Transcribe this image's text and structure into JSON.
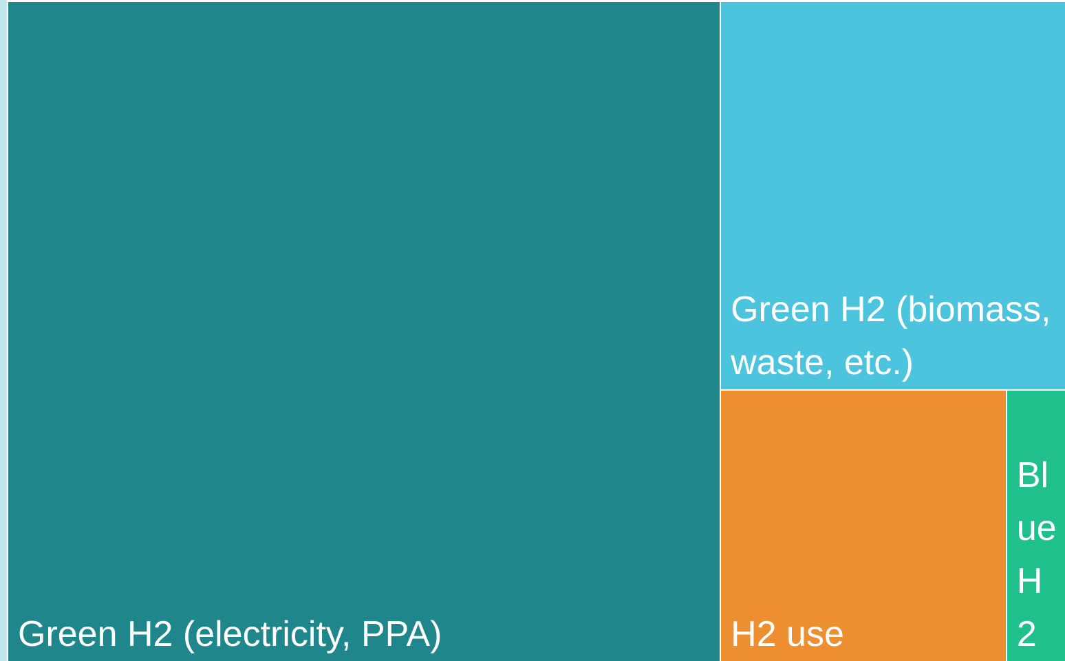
{
  "chart_data": {
    "type": "treemap",
    "categories": [
      "Green H2 (electricity, PPA)",
      "Green H2 (biomass, waste, etc.)",
      "H2 use",
      "Blue H2"
    ],
    "values": [
      67.3,
      19.2,
      11.1,
      2.3
    ],
    "colors": [
      "#1f878b",
      "#4dc4de",
      "#ed8e31",
      "#20c08c"
    ]
  }
}
